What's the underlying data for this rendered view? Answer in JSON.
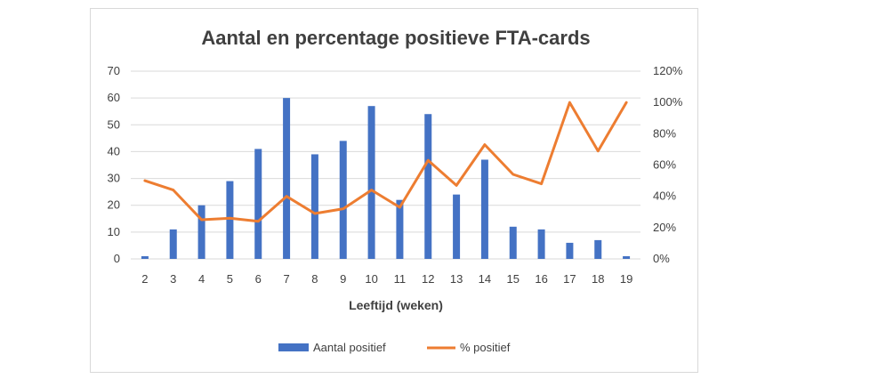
{
  "chart_data": {
    "type": "bar",
    "title": "Aantal en percentage positieve FTA-cards",
    "xlabel": "Leeftijd (weken)",
    "ylabel": "",
    "y2label": "",
    "categories": [
      "2",
      "3",
      "4",
      "5",
      "6",
      "7",
      "8",
      "9",
      "10",
      "11",
      "12",
      "13",
      "14",
      "15",
      "16",
      "17",
      "18",
      "19"
    ],
    "ylim": [
      0,
      70
    ],
    "yticks": [
      "0",
      "10",
      "20",
      "30",
      "40",
      "50",
      "60",
      "70"
    ],
    "y2lim": [
      0,
      1.2
    ],
    "y2ticks": [
      "0%",
      "20%",
      "40%",
      "60%",
      "80%",
      "100%",
      "120%"
    ],
    "grid": true,
    "legend_position": "bottom",
    "series": [
      {
        "name": "Aantal positief",
        "type": "bar",
        "axis": "left",
        "color": "#4472c4",
        "values": [
          1,
          11,
          20,
          29,
          41,
          60,
          39,
          44,
          57,
          22,
          54,
          24,
          37,
          12,
          11,
          6,
          7,
          1
        ]
      },
      {
        "name": "% positief",
        "type": "line",
        "axis": "right",
        "color": "#ed7d31",
        "values": [
          0.5,
          0.44,
          0.25,
          0.26,
          0.24,
          0.4,
          0.29,
          0.32,
          0.44,
          0.33,
          0.63,
          0.47,
          0.73,
          0.54,
          0.48,
          1.0,
          0.69,
          1.0
        ]
      }
    ]
  }
}
